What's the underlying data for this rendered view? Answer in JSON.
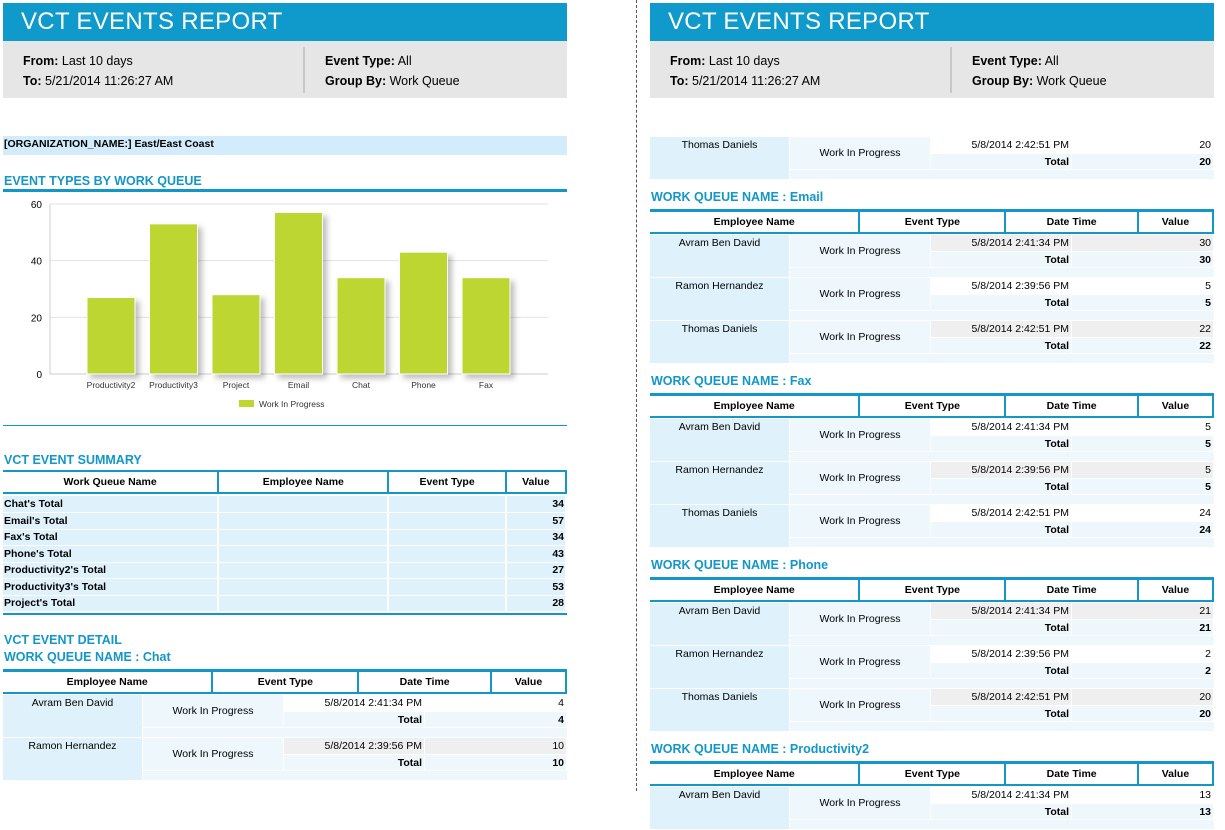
{
  "report": {
    "title": "VCT EVENTS REPORT",
    "from_label": "From:",
    "from_value": "Last 10 days",
    "to_label": "To:",
    "to_value": "5/21/2014 11:26:27 AM",
    "event_type_label": "Event Type:",
    "event_type_value": "All",
    "group_by_label": "Group By:",
    "group_by_value": "Work Queue"
  },
  "org": "[ORGANIZATION_NAME:] East/East Coast",
  "chart_title": "EVENT TYPES BY WORK QUEUE",
  "chart_data": {
    "type": "bar",
    "categories": [
      "Productivity2",
      "Productivity3",
      "Project",
      "Email",
      "Chat",
      "Phone",
      "Fax"
    ],
    "series": [
      {
        "name": "Work In Progress",
        "values": [
          27,
          53,
          28,
          57,
          34,
          43,
          34
        ],
        "color": "#bed630"
      }
    ],
    "ylim": [
      0,
      60
    ],
    "yticks": [
      0,
      20,
      40,
      60
    ],
    "grid": true,
    "legend": "bottom"
  },
  "summary": {
    "title": "VCT EVENT SUMMARY",
    "headers": [
      "Work Queue Name",
      "Employee Name",
      "Event Type",
      "Value"
    ],
    "rows": [
      [
        "Chat's Total",
        "34"
      ],
      [
        "Email's Total",
        "57"
      ],
      [
        "Fax's Total",
        "34"
      ],
      [
        "Phone's Total",
        "43"
      ],
      [
        "Productivity2's Total",
        "27"
      ],
      [
        "Productivity3's Total",
        "53"
      ],
      [
        "Project's Total",
        "28"
      ]
    ]
  },
  "detail": {
    "title": "VCT EVENT DETAIL",
    "section_prefix": "WORK QUEUE NAME : ",
    "headers": [
      "Employee Name",
      "Event Type",
      "Date Time",
      "Value"
    ],
    "total_label": "Total",
    "left": [
      {
        "queue": "Chat",
        "rows": [
          [
            "Avram Ben David",
            "Work In Progress",
            "5/8/2014 2:41:34 PM",
            "4",
            "4"
          ],
          [
            "Ramon Hernandez",
            "Work In Progress",
            "5/8/2014 2:39:56 PM",
            "10",
            "10"
          ]
        ]
      }
    ],
    "right_continued": [
      [
        "Thomas Daniels",
        "Work In Progress",
        "5/8/2014 2:42:51 PM",
        "20",
        "20"
      ]
    ],
    "right": [
      {
        "queue": "Email",
        "rows": [
          [
            "Avram Ben David",
            "Work In Progress",
            "5/8/2014 2:41:34 PM",
            "30",
            "30"
          ],
          [
            "Ramon Hernandez",
            "Work In Progress",
            "5/8/2014 2:39:56 PM",
            "5",
            "5"
          ],
          [
            "Thomas Daniels",
            "Work In Progress",
            "5/8/2014 2:42:51 PM",
            "22",
            "22"
          ]
        ]
      },
      {
        "queue": "Fax",
        "rows": [
          [
            "Avram Ben David",
            "Work In Progress",
            "5/8/2014 2:41:34 PM",
            "5",
            "5"
          ],
          [
            "Ramon Hernandez",
            "Work In Progress",
            "5/8/2014 2:39:56 PM",
            "5",
            "5"
          ],
          [
            "Thomas Daniels",
            "Work In Progress",
            "5/8/2014 2:42:51 PM",
            "24",
            "24"
          ]
        ]
      },
      {
        "queue": "Phone",
        "rows": [
          [
            "Avram Ben David",
            "Work In Progress",
            "5/8/2014 2:41:34 PM",
            "21",
            "21"
          ],
          [
            "Ramon Hernandez",
            "Work In Progress",
            "5/8/2014 2:39:56 PM",
            "2",
            "2"
          ],
          [
            "Thomas Daniels",
            "Work In Progress",
            "5/8/2014 2:42:51 PM",
            "20",
            "20"
          ]
        ]
      },
      {
        "queue": "Productivity2",
        "rows": [
          [
            "Avram Ben David",
            "Work In Progress",
            "5/8/2014 2:41:34 PM",
            "13",
            "13"
          ]
        ]
      }
    ]
  },
  "colors": {
    "accent": "#0f9acb",
    "bar": "#bed630"
  }
}
